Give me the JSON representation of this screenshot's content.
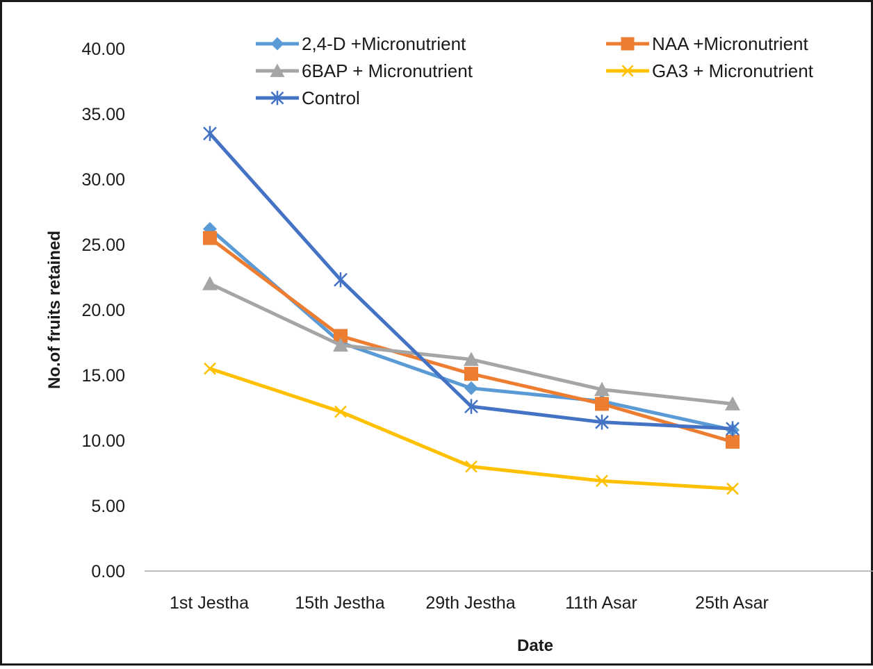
{
  "chart_data": {
    "type": "line",
    "title": "",
    "xlabel": "Date",
    "ylabel": "No.of fruits retained",
    "ylim": [
      0,
      40
    ],
    "yticks": [
      "0.00",
      "5.00",
      "10.00",
      "15.00",
      "20.00",
      "25.00",
      "30.00",
      "35.00",
      "40.00"
    ],
    "categories": [
      "1st Jestha",
      "15th Jestha",
      "29th Jestha",
      "11th Asar",
      "25th Asar"
    ],
    "grid": false,
    "legend_position": "top",
    "series": [
      {
        "name": "2,4-D +Micronutrient",
        "values": [
          26.2,
          17.5,
          14.0,
          13.0,
          10.8
        ],
        "color": "#5B9BD5",
        "marker": "diamond"
      },
      {
        "name": "NAA +Micronutrient",
        "values": [
          25.5,
          18.0,
          15.1,
          12.8,
          9.9
        ],
        "color": "#ED7D31",
        "marker": "square"
      },
      {
        "name": "6BAP + Micronutrient",
        "values": [
          22.0,
          17.3,
          16.2,
          13.9,
          12.8
        ],
        "color": "#A5A5A5",
        "marker": "triangle"
      },
      {
        "name": "GA3 + Micronutrient",
        "values": [
          15.5,
          12.2,
          8.0,
          6.9,
          6.3
        ],
        "color": "#FFC000",
        "marker": "x"
      },
      {
        "name": "Control",
        "values": [
          33.5,
          22.3,
          12.6,
          11.4,
          10.9
        ],
        "color": "#4472C4",
        "marker": "asterisk"
      }
    ]
  }
}
